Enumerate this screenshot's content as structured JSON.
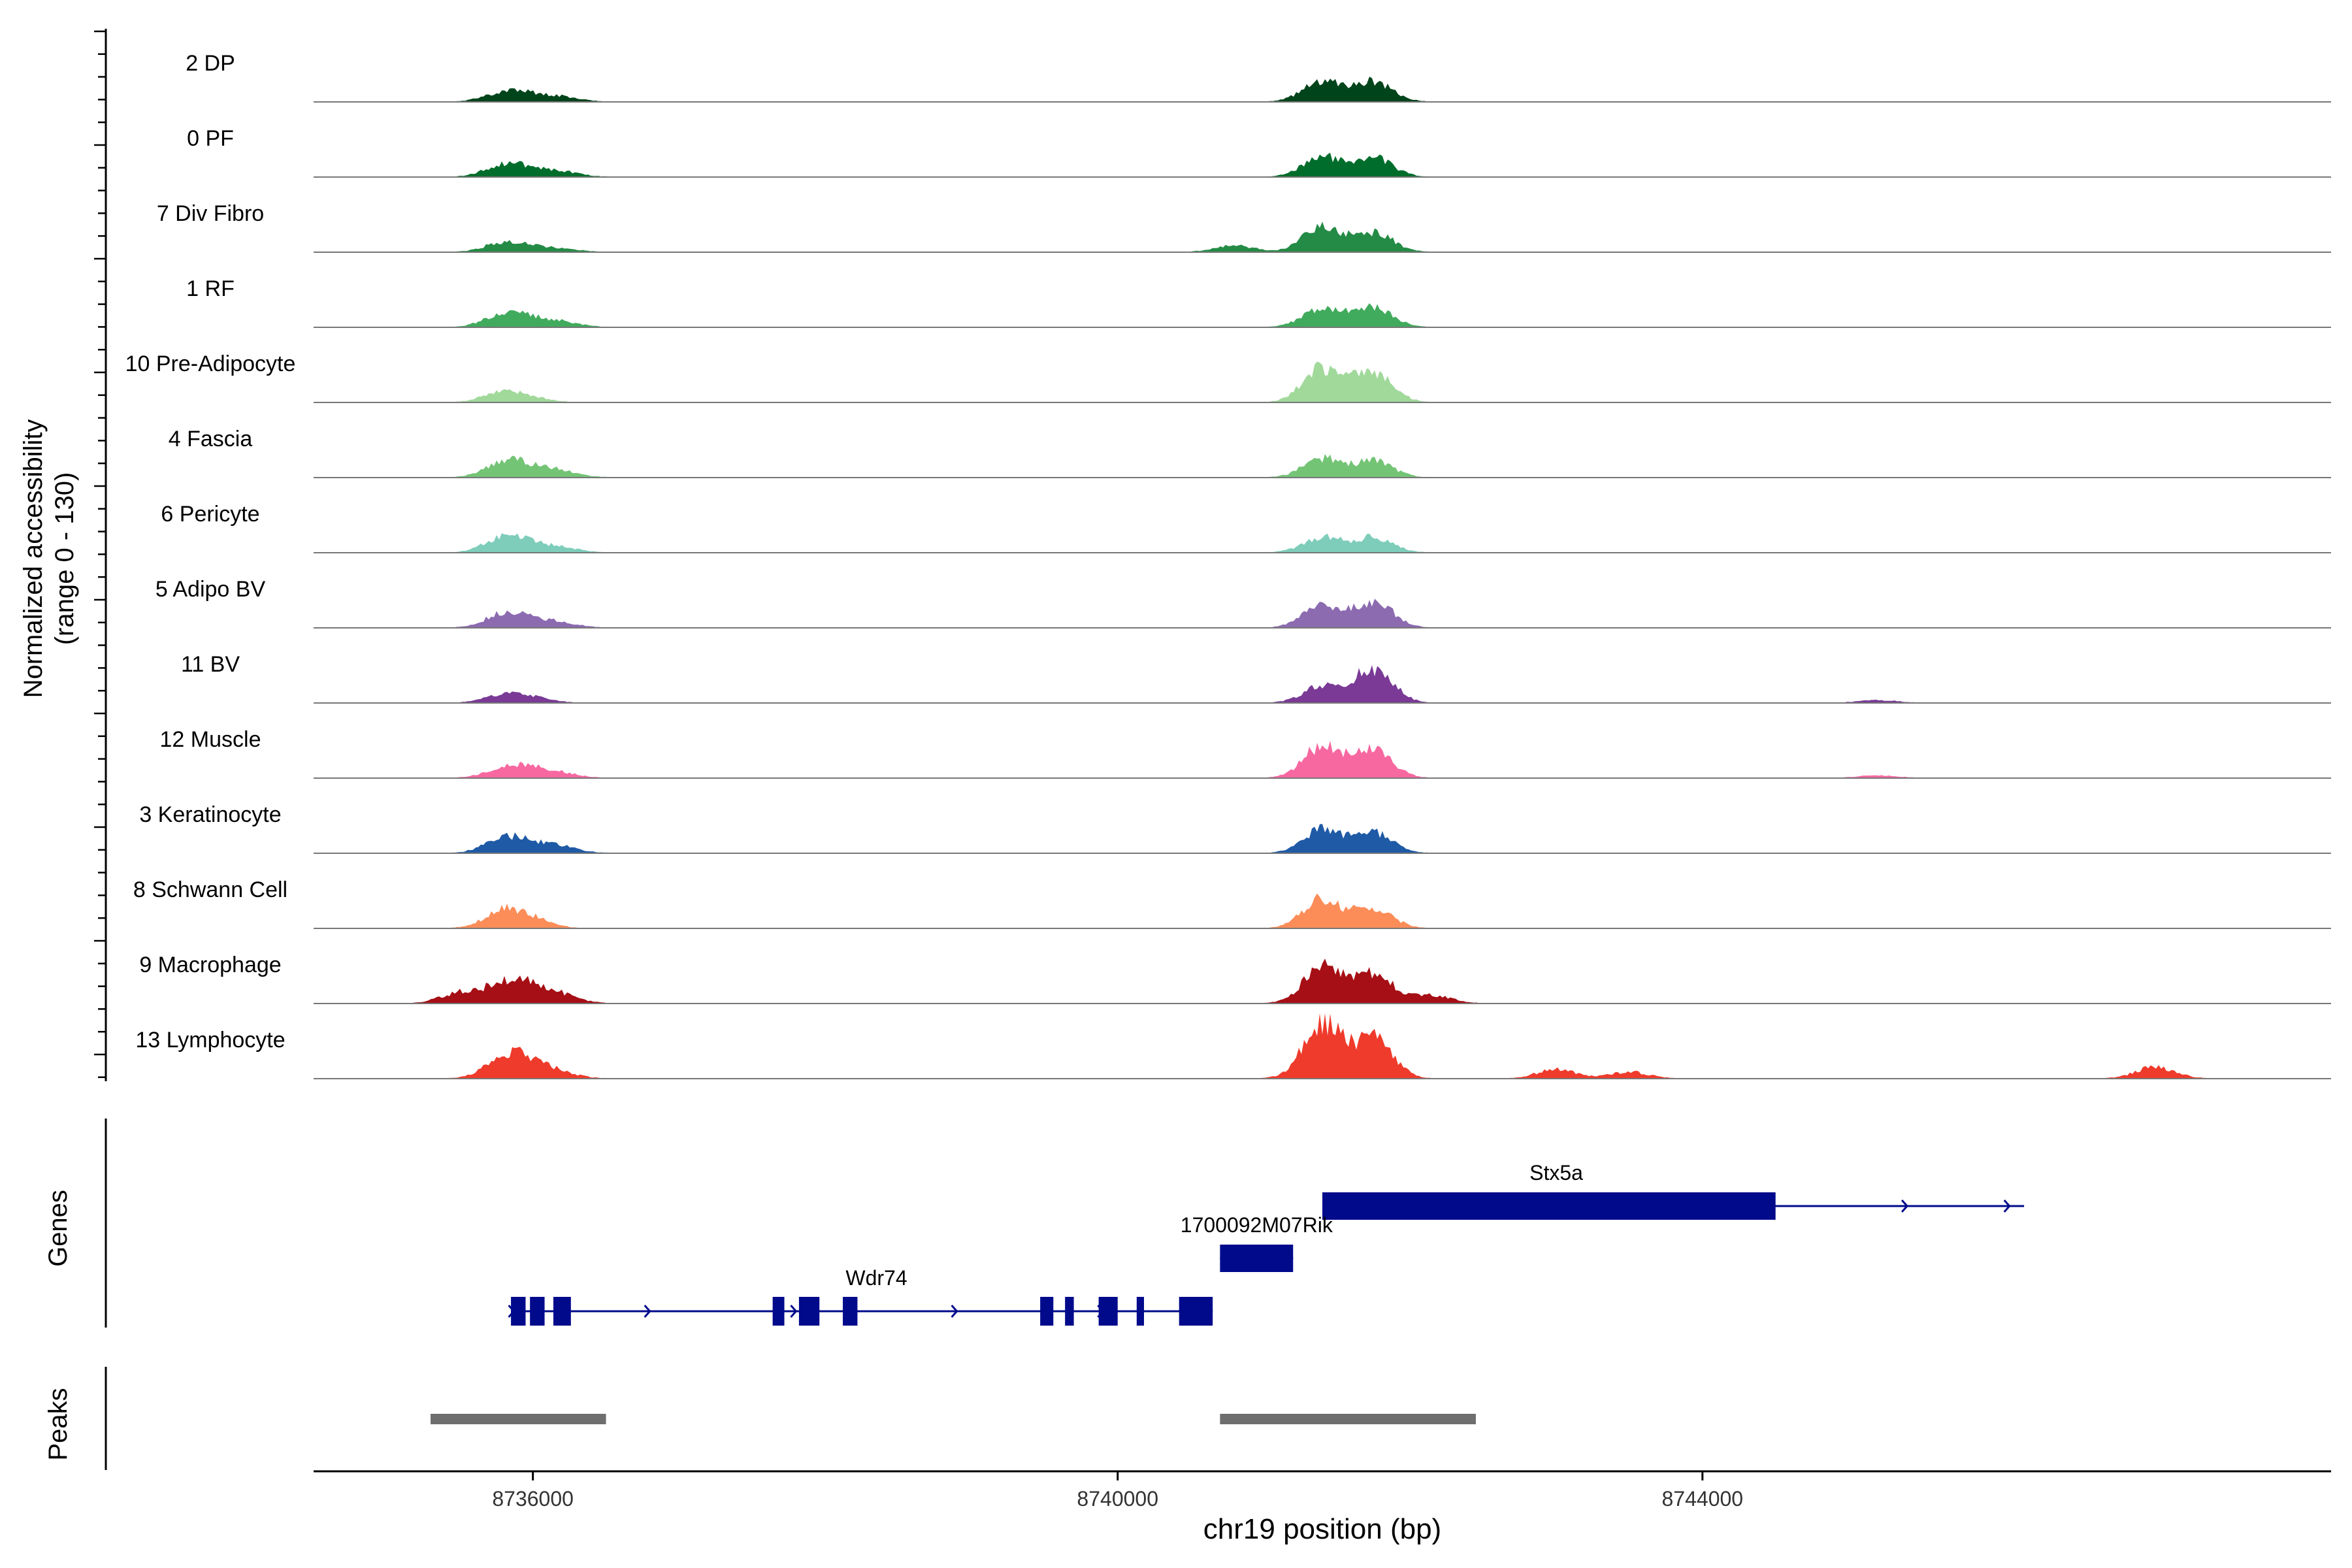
{
  "chart_data": {
    "type": "area",
    "title": "",
    "xlabel": "chr19 position (bp)",
    "ylabel": "Normalized accessibility",
    "ylabel_range": "(range 0 - 130)",
    "yrange": [
      0,
      130
    ],
    "xlim": [
      8734500,
      8748300
    ],
    "xticks": [
      8736000,
      8740000,
      8744000
    ],
    "xtick_labels": [
      "8736000",
      "8740000",
      "8744000"
    ],
    "tracks_label": "Genes",
    "peaks_label": "Peaks",
    "peak_regions": [
      [
        8735300,
        8736500
      ],
      [
        8740700,
        8742450
      ]
    ],
    "peak_color": "#6e6e6e",
    "gene_color": "#000a8b",
    "gene_names": [
      "Stx5a",
      "1700092M07Rik",
      "Wdr74"
    ],
    "groups": [
      {
        "name": "2 DP",
        "color": "#00441b",
        "peaks": [
          [
            8735800,
            0.14
          ],
          [
            8736000,
            0.08
          ],
          [
            8736200,
            0.06
          ],
          [
            8741400,
            0.32
          ],
          [
            8741750,
            0.3
          ]
        ]
      },
      {
        "name": "0 PF",
        "color": "#006d2c",
        "peaks": [
          [
            8735800,
            0.18
          ],
          [
            8736000,
            0.08
          ],
          [
            8736200,
            0.07
          ],
          [
            8741400,
            0.3
          ],
          [
            8741750,
            0.29
          ]
        ]
      },
      {
        "name": "7 Div Fibro",
        "color": "#238b45",
        "peaks": [
          [
            8735800,
            0.14
          ],
          [
            8736000,
            0.06
          ],
          [
            8736200,
            0.04
          ],
          [
            8740800,
            0.1
          ],
          [
            8741400,
            0.38
          ],
          [
            8741750,
            0.3
          ]
        ]
      },
      {
        "name": "1 RF",
        "color": "#41ab5d",
        "peaks": [
          [
            8735800,
            0.2
          ],
          [
            8736000,
            0.09
          ],
          [
            8736200,
            0.07
          ],
          [
            8741400,
            0.3
          ],
          [
            8741750,
            0.29
          ]
        ]
      },
      {
        "name": "10 Pre-Adipocyte",
        "color": "#a1d99b",
        "peaks": [
          [
            8735800,
            0.17
          ],
          [
            8736000,
            0.05
          ],
          [
            8741400,
            0.52
          ],
          [
            8741750,
            0.46
          ]
        ]
      },
      {
        "name": "4 Fascia",
        "color": "#74c476",
        "peaks": [
          [
            8735800,
            0.22
          ],
          [
            8736000,
            0.12
          ],
          [
            8736200,
            0.08
          ],
          [
            8741400,
            0.29
          ],
          [
            8741750,
            0.25
          ]
        ]
      },
      {
        "name": "6 Pericyte",
        "color": "#7ecdbb",
        "peaks": [
          [
            8735800,
            0.22
          ],
          [
            8736000,
            0.1
          ],
          [
            8736200,
            0.06
          ],
          [
            8741400,
            0.23
          ],
          [
            8741750,
            0.23
          ]
        ]
      },
      {
        "name": "5 Adipo BV",
        "color": "#8c6bb1",
        "peaks": [
          [
            8735800,
            0.2
          ],
          [
            8736000,
            0.1
          ],
          [
            8736200,
            0.06
          ],
          [
            8741400,
            0.33
          ],
          [
            8741750,
            0.4
          ]
        ]
      },
      {
        "name": "11 BV",
        "color": "#7a3a96",
        "peaks": [
          [
            8735800,
            0.12
          ],
          [
            8736000,
            0.07
          ],
          [
            8741400,
            0.25
          ],
          [
            8741750,
            0.52
          ],
          [
            8745200,
            0.04
          ]
        ]
      },
      {
        "name": "12 Muscle",
        "color": "#f768a1",
        "peaks": [
          [
            8735800,
            0.14
          ],
          [
            8736000,
            0.12
          ],
          [
            8736200,
            0.06
          ],
          [
            8741400,
            0.48
          ],
          [
            8741750,
            0.42
          ],
          [
            8745200,
            0.04
          ]
        ]
      },
      {
        "name": "3 Keratinocyte",
        "color": "#1f5aa6",
        "peaks": [
          [
            8735800,
            0.22
          ],
          [
            8736000,
            0.1
          ],
          [
            8736200,
            0.08
          ],
          [
            8741400,
            0.36
          ],
          [
            8741750,
            0.3
          ]
        ]
      },
      {
        "name": "8 Schwann Cell",
        "color": "#fc8d59",
        "peaks": [
          [
            8735800,
            0.26
          ],
          [
            8736000,
            0.12
          ],
          [
            8741400,
            0.45
          ],
          [
            8741750,
            0.3
          ]
        ]
      },
      {
        "name": "9 Macrophage",
        "color": "#a50f15",
        "peaks": [
          [
            8735500,
            0.16
          ],
          [
            8735800,
            0.28
          ],
          [
            8736000,
            0.22
          ],
          [
            8736200,
            0.1
          ],
          [
            8741400,
            0.55
          ],
          [
            8741750,
            0.45
          ],
          [
            8742150,
            0.12
          ]
        ]
      },
      {
        "name": "13 Lymphocyte",
        "color": "#ef3b2c",
        "peaks": [
          [
            8735800,
            0.3
          ],
          [
            8736000,
            0.22
          ],
          [
            8736200,
            0.06
          ],
          [
            8741400,
            0.86
          ],
          [
            8741750,
            0.62
          ],
          [
            8743000,
            0.14
          ],
          [
            8743500,
            0.1
          ],
          [
            8747100,
            0.18
          ]
        ]
      }
    ],
    "genes": [
      {
        "name": "Stx5a",
        "label_pos": 8743000,
        "start": 8741400,
        "end": 8746200,
        "exons": [
          [
            8741400,
            8744500
          ]
        ],
        "arrows": [
          8745400,
          8746100
        ]
      },
      {
        "name": "1700092M07Rik",
        "label_pos": 8740950,
        "start": 8740700,
        "end": 8741200,
        "exons": [
          [
            8740700,
            8741200
          ]
        ],
        "arrows": [
          8741150
        ]
      },
      {
        "name": "Wdr74",
        "label_pos": 8738350,
        "start": 8735850,
        "end": 8740650,
        "exons": [
          [
            8735850,
            8735950
          ],
          [
            8735980,
            8736080
          ],
          [
            8736140,
            8736260
          ],
          [
            8737640,
            8737720
          ],
          [
            8737820,
            8737960
          ],
          [
            8738120,
            8738220
          ],
          [
            8739470,
            8739560
          ],
          [
            8739640,
            8739700
          ],
          [
            8739870,
            8740000
          ],
          [
            8740130,
            8740180
          ],
          [
            8740420,
            8740650
          ]
        ],
        "arrows": [
          8735870,
          8736800,
          8737800,
          8738900,
          8739900
        ]
      }
    ]
  }
}
